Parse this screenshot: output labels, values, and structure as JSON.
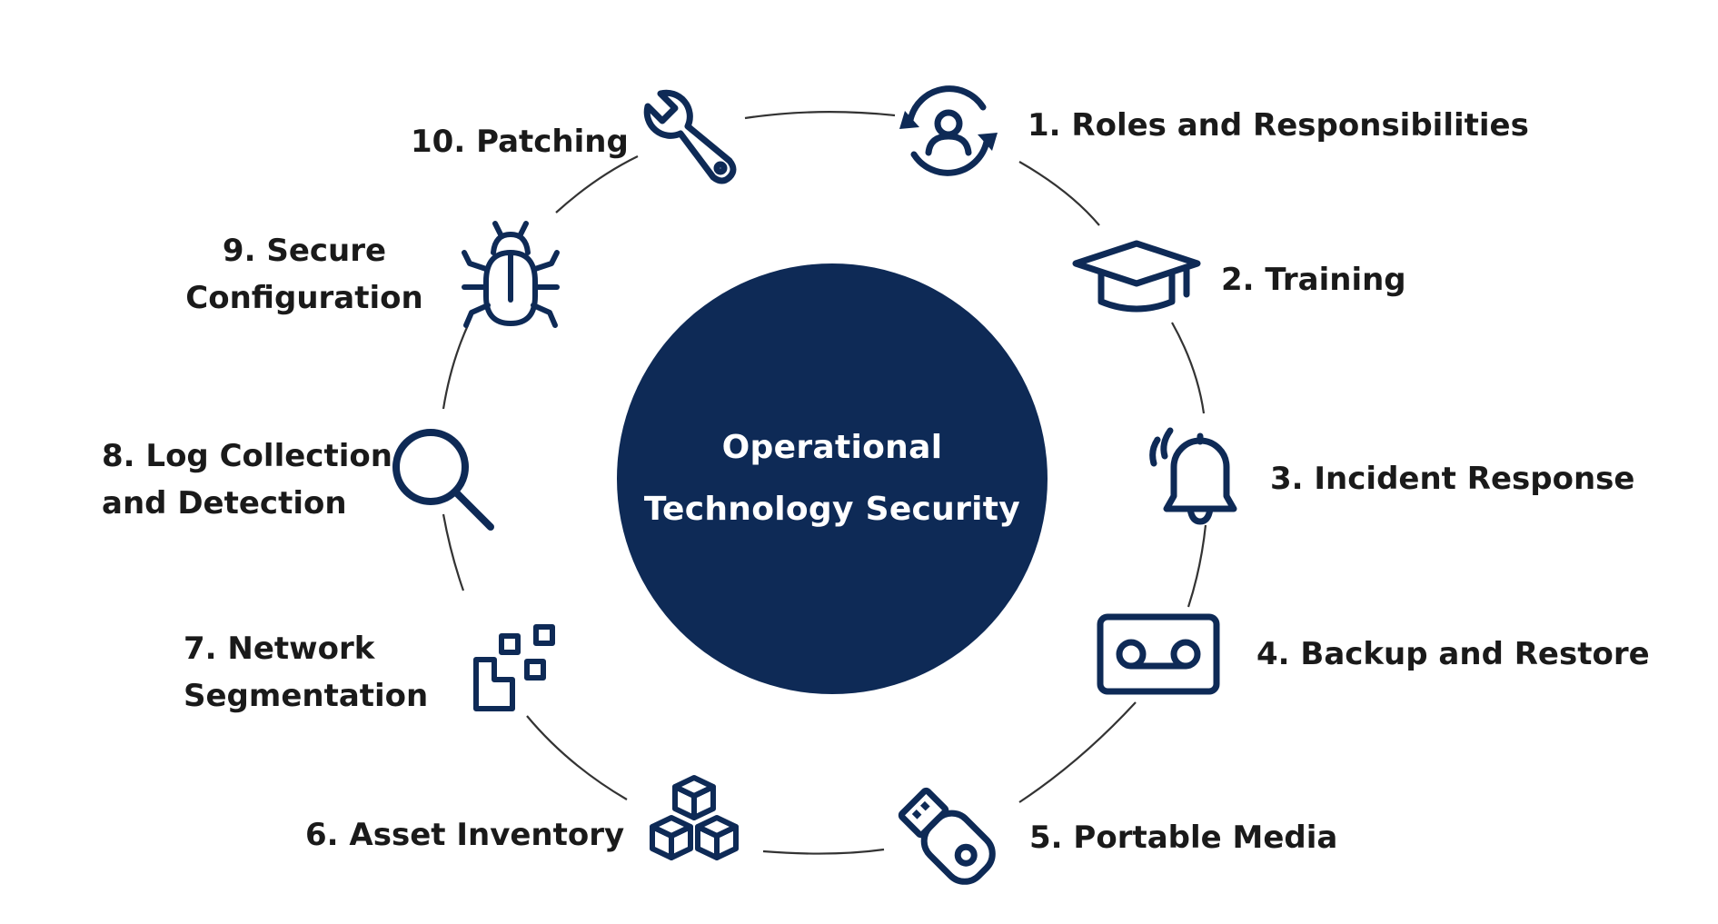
{
  "center": {
    "title_line1": "Operational",
    "title_line2": "Technology Security"
  },
  "items": [
    {
      "label": "1. Roles and Responsibilities",
      "icon": "roles-cycle-icon"
    },
    {
      "label": "2. Training",
      "icon": "graduation-cap-icon"
    },
    {
      "label": "3. Incident Response",
      "icon": "bell-alert-icon"
    },
    {
      "label": "4. Backup and Restore",
      "icon": "tape-backup-icon"
    },
    {
      "label": "5. Portable Media",
      "icon": "usb-drive-icon"
    },
    {
      "label": "6. Asset Inventory",
      "icon": "cubes-icon"
    },
    {
      "label_line1": "7. Network",
      "label_line2": "Segmentation",
      "icon": "segmentation-icon"
    },
    {
      "label_line1": "8. Log Collection",
      "label_line2": "and Detection",
      "icon": "magnifier-icon"
    },
    {
      "label_line1": "9. Secure",
      "label_line2": "Configuration",
      "icon": "bug-icon"
    },
    {
      "label": "10. Patching",
      "icon": "wrench-icon"
    }
  ],
  "colors": {
    "navy": "#0e2a56",
    "ring": "#333333",
    "text": "#1a1a1a"
  }
}
